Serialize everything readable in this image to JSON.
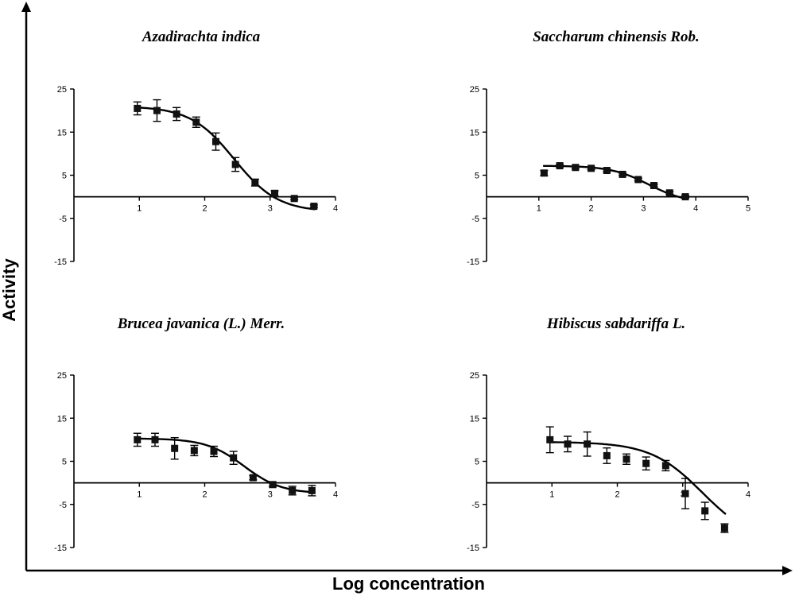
{
  "figure": {
    "xlabel": "Log concentration",
    "ylabel": "Activity"
  },
  "chart_data": [
    {
      "type": "scatter",
      "title": "Azadirachta indica",
      "xlim": [
        0,
        4
      ],
      "ylim": [
        -15,
        25
      ],
      "xticks": [
        1,
        2,
        3,
        4
      ],
      "yticks": [
        25,
        15,
        5,
        -5,
        -15
      ],
      "series": [
        {
          "x": [
            0.97,
            1.27,
            1.57,
            1.87,
            2.17,
            2.47,
            2.77,
            3.07,
            3.37,
            3.67
          ],
          "y": [
            20.5,
            20.0,
            19.2,
            17.3,
            12.8,
            7.5,
            3.3,
            0.8,
            -0.4,
            -2.2
          ],
          "err": [
            1.5,
            2.5,
            1.5,
            1.2,
            2.0,
            1.6,
            0.8,
            0.6,
            0.3,
            0.3
          ],
          "fit": {
            "top": 21,
            "bottom": -3.5,
            "logEC50": 2.45,
            "slope": 1.3
          }
        }
      ]
    },
    {
      "type": "scatter",
      "title": "Saccharum chinensis Rob.",
      "xlim": [
        0,
        5
      ],
      "ylim": [
        -15,
        25
      ],
      "xticks": [
        1,
        2,
        3,
        4,
        5
      ],
      "yticks": [
        25,
        15,
        5,
        -5,
        -15
      ],
      "series": [
        {
          "x": [
            1.1,
            1.4,
            1.7,
            2.0,
            2.3,
            2.6,
            2.9,
            3.2,
            3.5,
            3.8
          ],
          "y": [
            5.5,
            7.2,
            6.8,
            6.6,
            6.1,
            5.2,
            4.0,
            2.6,
            0.9,
            0.0
          ],
          "err": [
            0.6,
            0.3,
            0.3,
            0.3,
            0.3,
            0.3,
            0.3,
            0.3,
            0.3,
            0.3
          ],
          "fit": {
            "top": 7.2,
            "bottom": -1.5,
            "logEC50": 3.1,
            "slope": 1.2
          }
        }
      ]
    },
    {
      "type": "scatter",
      "title": "Brucea javanica (L.) Merr.",
      "xlim": [
        0,
        4
      ],
      "ylim": [
        -15,
        25
      ],
      "xticks": [
        1,
        2,
        3,
        4
      ],
      "yticks": [
        25,
        15,
        5,
        -5,
        -15
      ],
      "series": [
        {
          "x": [
            0.97,
            1.24,
            1.54,
            1.84,
            2.14,
            2.44,
            2.74,
            3.04,
            3.34,
            3.64
          ],
          "y": [
            10.0,
            10.0,
            8.0,
            7.5,
            7.3,
            5.8,
            1.2,
            -0.4,
            -1.8,
            -1.8
          ],
          "err": [
            1.5,
            1.5,
            2.5,
            1.2,
            1.2,
            1.5,
            0.5,
            0.5,
            1.0,
            1.2
          ],
          "fit": {
            "top": 10.3,
            "bottom": -2.5,
            "logEC50": 2.6,
            "slope": 1.5
          }
        }
      ]
    },
    {
      "type": "scatter",
      "title": "Hibiscus sabdariffa L.",
      "xlim": [
        0,
        4
      ],
      "ylim": [
        -15,
        25
      ],
      "xticks": [
        1,
        2,
        3,
        4
      ],
      "yticks": [
        25,
        15,
        5,
        -5,
        -15
      ],
      "series": [
        {
          "x": [
            0.97,
            1.24,
            1.54,
            1.84,
            2.14,
            2.44,
            2.74,
            3.04,
            3.34,
            3.64
          ],
          "y": [
            10.0,
            9.0,
            9.0,
            6.3,
            5.5,
            4.5,
            4.0,
            -2.5,
            -6.5,
            -10.5
          ],
          "err": [
            3.0,
            1.8,
            2.8,
            1.8,
            1.2,
            1.5,
            1.2,
            3.5,
            2.0,
            1.0
          ],
          "fit": {
            "top": 9.5,
            "bottom": -14,
            "logEC50": 3.3,
            "slope": 1.1
          }
        }
      ]
    }
  ]
}
